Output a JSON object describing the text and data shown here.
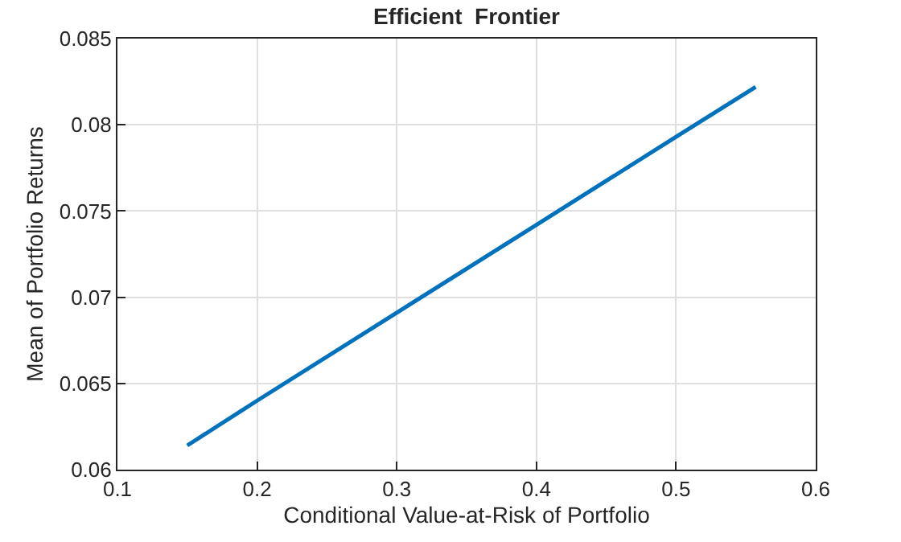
{
  "chart_data": {
    "type": "line",
    "title": "Efficient  Frontier",
    "xlabel": "Conditional Value-at-Risk of Portfolio",
    "ylabel": "Mean of Portfolio Returns",
    "x": [
      0.15,
      0.2,
      0.3,
      0.4,
      0.5,
      0.557
    ],
    "series": [
      {
        "color": "#0072bd",
        "values": [
          0.0614,
          0.064,
          0.0691,
          0.0742,
          0.0793,
          0.0822
        ]
      }
    ],
    "xlim": [
      0.1,
      0.6
    ],
    "xticks": [
      0.1,
      0.2,
      0.3,
      0.4,
      0.5,
      0.6
    ],
    "ylim": [
      0.06,
      0.085
    ],
    "yticks": [
      0.06,
      0.065,
      0.07,
      0.075,
      0.08,
      0.085
    ],
    "grid": true,
    "marker": "none",
    "line_style": "solid"
  }
}
